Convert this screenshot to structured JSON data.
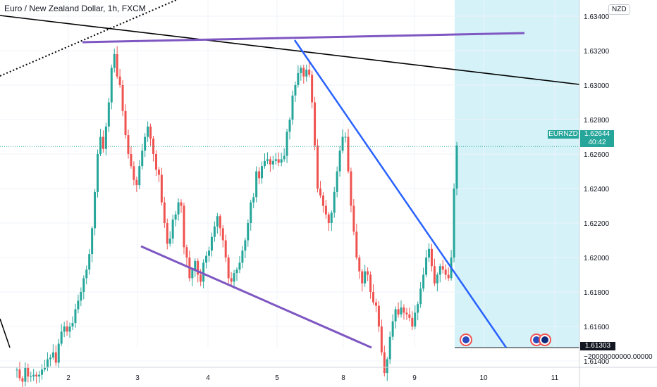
{
  "header": {
    "title": "Euro / New Zealand Dollar, 1h, FXCM"
  },
  "currency_label": "NZD",
  "symbol_tag": "EURNZD",
  "last_price": "1.62644",
  "countdown": "40:42",
  "bottom_tag": "1.61303",
  "bottom_axis_value": "−20000000000.00000",
  "chart_data": {
    "type": "candlestick",
    "title": "Euro / New Zealand Dollar, 1h, FXCM",
    "xlabel": "",
    "ylabel": "",
    "ylim": [
      1.6128,
      1.635
    ],
    "y_ticks": [
      "1.61400",
      "1.61600",
      "1.61800",
      "1.62000",
      "1.62200",
      "1.62400",
      "1.62600",
      "1.62800",
      "1.63000",
      "1.63200",
      "1.63400"
    ],
    "x_ticks": [
      "2",
      "3",
      "4",
      "5",
      "8",
      "9",
      "10",
      "11"
    ],
    "colors": {
      "up": "#26a69a",
      "down": "#ef5350",
      "purple": "#7e57c2",
      "blue": "#2962ff",
      "projection": "#d4f2f8"
    },
    "closes": [
      1.6135,
      1.613,
      1.6128,
      1.6136,
      1.6131,
      1.6131,
      1.6132,
      1.6131,
      1.6132,
      1.6135,
      1.6136,
      1.6141,
      1.6142,
      1.6145,
      1.6139,
      1.615,
      1.6157,
      1.616,
      1.6157,
      1.616,
      1.6162,
      1.617,
      1.6175,
      1.618,
      1.6188,
      1.6193,
      1.6202,
      1.6217,
      1.6238,
      1.626,
      1.627,
      1.6263,
      1.6276,
      1.629,
      1.631,
      1.6318,
      1.6305,
      1.63,
      1.6285,
      1.6271,
      1.626,
      1.6253,
      1.6245,
      1.6242,
      1.6253,
      1.6262,
      1.627,
      1.6276,
      1.6269,
      1.626,
      1.6251,
      1.6248,
      1.6232,
      1.622,
      1.6208,
      1.6211,
      1.6222,
      1.6225,
      1.6232,
      1.623,
      1.6206,
      1.62,
      1.6188,
      1.6193,
      1.6198,
      1.619,
      1.6186,
      1.6197,
      1.6201,
      1.6204,
      1.6212,
      1.6218,
      1.6224,
      1.6217,
      1.621,
      1.62,
      1.6188,
      1.6186,
      1.6191,
      1.6193,
      1.6197,
      1.6204,
      1.621,
      1.622,
      1.6232,
      1.6235,
      1.625,
      1.6246,
      1.6253,
      1.6256,
      1.6257,
      1.6254,
      1.6256,
      1.6257,
      1.6255,
      1.6257,
      1.6259,
      1.6273,
      1.628,
      1.6294,
      1.63,
      1.6307,
      1.631,
      1.6305,
      1.6309,
      1.6306,
      1.629,
      1.6265,
      1.624,
      1.6236,
      1.623,
      1.6225,
      1.622,
      1.6226,
      1.6238,
      1.625,
      1.6262,
      1.627,
      1.627,
      1.625,
      1.623,
      1.6215,
      1.62,
      1.6192,
      1.6185,
      1.6192,
      1.619,
      1.618,
      1.6174,
      1.6172,
      1.616,
      1.6145,
      1.6133,
      1.6141,
      1.6154,
      1.6163,
      1.617,
      1.6167,
      1.6171,
      1.6168,
      1.6167,
      1.6165,
      1.616,
      1.6168,
      1.6173,
      1.6182,
      1.619,
      1.62,
      1.6205,
      1.6195,
      1.6185,
      1.619,
      1.6195,
      1.6193,
      1.619,
      1.6188,
      1.62,
      1.624,
      1.6265
    ],
    "open": 1.6135,
    "last": 1.62644
  }
}
